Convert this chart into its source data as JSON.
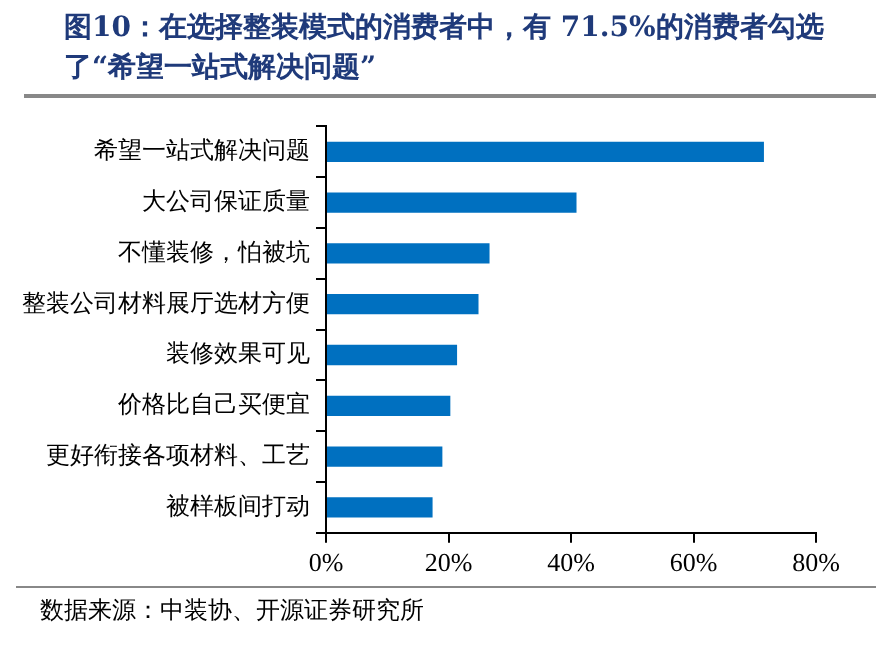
{
  "chart_data": {
    "type": "bar",
    "orientation": "horizontal",
    "title": "图10：在选择整装模式的消费者中，有 71.5%的消费者勾选了“希望一站式解决问题”",
    "categories": [
      "希望一站式解决问题",
      "大公司保证质量",
      "不懂装修，怕被坑",
      "整装公司材料展厅选材方便",
      "装修效果可见",
      "价格比自己买便宜",
      "更好衔接各项材料、工艺",
      "被样板间打动"
    ],
    "values": [
      71.5,
      40.9,
      26.7,
      24.9,
      21.4,
      20.3,
      19.0,
      17.4
    ],
    "color": "#0070c0",
    "xlim": [
      0,
      80
    ],
    "xticks": [
      {
        "value": 0,
        "label": "0%"
      },
      {
        "value": 20,
        "label": "20%"
      },
      {
        "value": 40,
        "label": "40%"
      },
      {
        "value": 60,
        "label": "60%"
      },
      {
        "value": 80,
        "label": "80%"
      }
    ],
    "grid": false,
    "legend": false,
    "annotations": [
      "数据来源：中装协、开源证券研究所"
    ]
  }
}
